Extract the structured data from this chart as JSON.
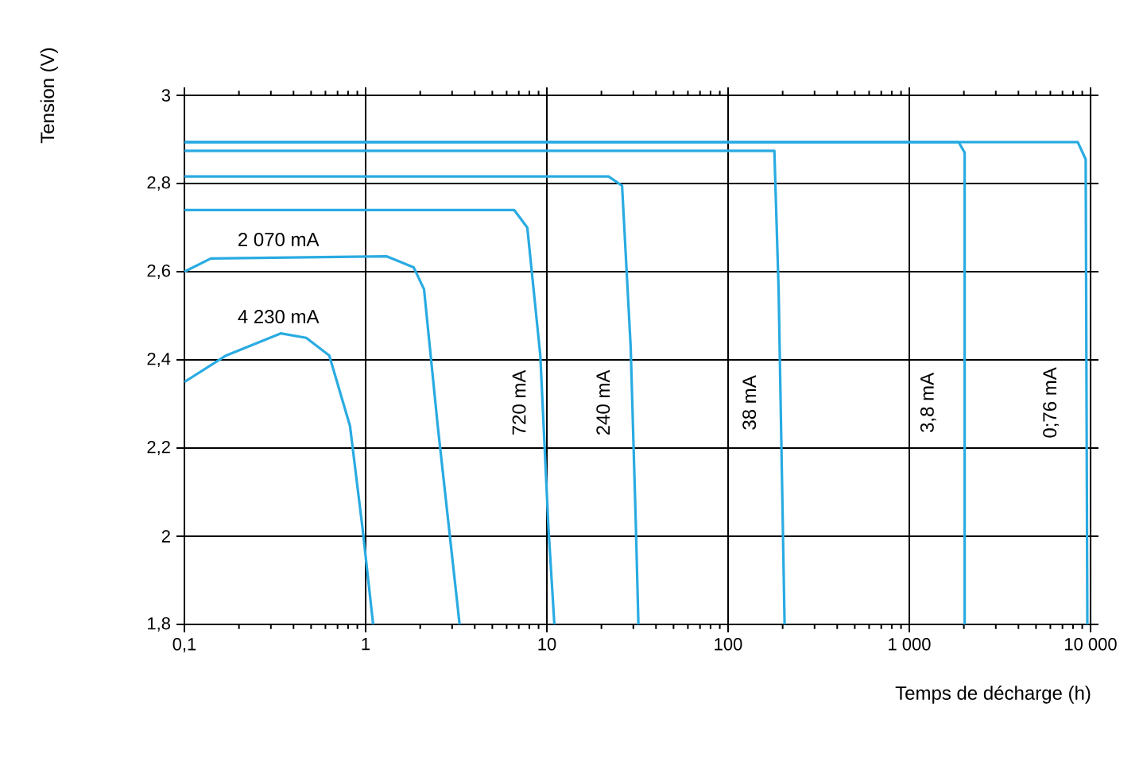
{
  "chart_data": {
    "type": "line",
    "xlabel": "Temps de décharge (h)",
    "ylabel": "Tension (V)",
    "log": "x",
    "grid": true,
    "legend": false,
    "marker": "none",
    "line_style": "solid",
    "xlim": [
      0.1,
      10000
    ],
    "ylim": [
      1.8,
      3
    ],
    "xticks": [
      {
        "value": 0.1,
        "label": "0,1"
      },
      1,
      10,
      100,
      {
        "value": 1000,
        "label": "1 000"
      },
      {
        "value": 10000,
        "label": "10 000"
      }
    ],
    "yticks": [
      {
        "value": 1.8,
        "label": "1,8"
      },
      2,
      {
        "value": 2.2,
        "label": "2,2"
      },
      {
        "value": 2.4,
        "label": "2,4"
      },
      {
        "value": 2.6,
        "label": "2,6"
      },
      {
        "value": 2.8,
        "label": "2,8"
      },
      3
    ],
    "series": [
      {
        "name": "4 230 mA",
        "color": "#29abe2",
        "x": [
          0.1,
          0.17,
          0.34,
          0.47,
          0.63,
          0.82,
          0.96,
          1.1
        ],
        "values": [
          2.35,
          2.41,
          2.46,
          2.45,
          2.41,
          2.25,
          2.02,
          1.8
        ]
      },
      {
        "name": "2 070 mA",
        "color": "#29abe2",
        "x": [
          0.1,
          0.14,
          1.3,
          1.84,
          2.1,
          2.5,
          3.3
        ],
        "values": [
          2.6,
          2.63,
          2.635,
          2.61,
          2.56,
          2.25,
          1.8
        ]
      },
      {
        "name": "720 mA",
        "color": "#29abe2",
        "x": [
          0.1,
          6.6,
          7.8,
          9.2,
          10.2,
          11
        ],
        "values": [
          2.74,
          2.74,
          2.7,
          2.41,
          2.02,
          1.8
        ]
      },
      {
        "name": "240 mA",
        "color": "#29abe2",
        "x": [
          0.1,
          21.9,
          26,
          29,
          31,
          32
        ],
        "values": [
          2.816,
          2.816,
          2.795,
          2.43,
          2.02,
          1.8
        ]
      },
      {
        "name": "38 mA",
        "color": "#29abe2",
        "x": [
          0.1,
          180,
          190,
          205
        ],
        "values": [
          2.874,
          2.874,
          2.56,
          1.8
        ]
      },
      {
        "name": "3,8 mA",
        "color": "#29abe2",
        "x": [
          0.1,
          1870,
          2020,
          2020
        ],
        "values": [
          2.894,
          2.894,
          2.87,
          1.8
        ]
      },
      {
        "name": "0;76 mA",
        "color": "#29abe2",
        "x": [
          0.1,
          8500,
          9400,
          9600
        ],
        "values": [
          2.894,
          2.894,
          2.855,
          1.8
        ]
      }
    ]
  }
}
